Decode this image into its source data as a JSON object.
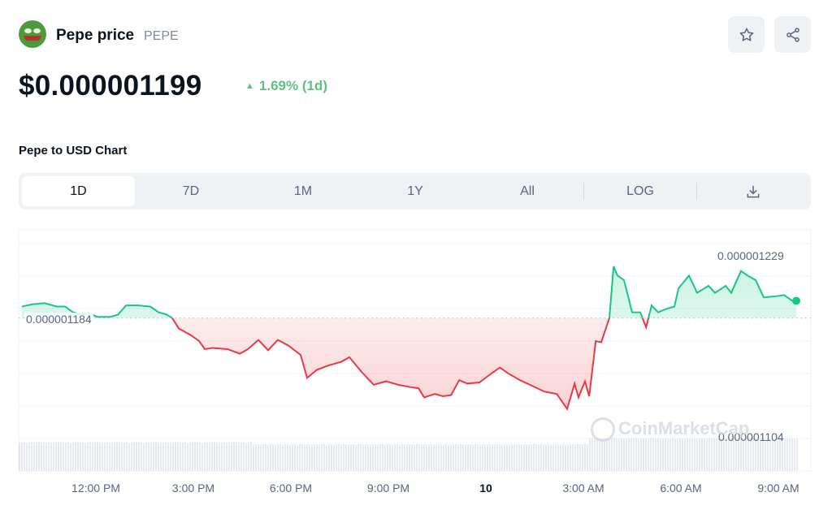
{
  "header": {
    "title": "Pepe price",
    "symbol": "PEPE",
    "price": "$0.000001199",
    "change": "1.69% (1d)",
    "change_direction": "up",
    "logo_icon": "pepe-frog-icon"
  },
  "actions": {
    "star_icon": "star-icon",
    "share_icon": "share-icon"
  },
  "chart_section": {
    "title": "Pepe to USD Chart",
    "tabs": [
      {
        "label": "1D",
        "selected": true
      },
      {
        "label": "7D"
      },
      {
        "label": "1M"
      },
      {
        "label": "1Y"
      },
      {
        "label": "All"
      },
      {
        "label": "LOG"
      }
    ],
    "download_icon": "download-icon"
  },
  "colors": {
    "up": "#16c784",
    "down": "#ea3943",
    "accent_text": "#5ec27f"
  },
  "chart_data": {
    "type": "line",
    "title": "Pepe to USD Chart",
    "value_unit": "1e-9 USD",
    "x_unit": "hours since 12:00 PM",
    "x_tick_labels": [
      "12:00 PM",
      "3:00 PM",
      "6:00 PM",
      "9:00 PM",
      "10",
      "3:00 AM",
      "6:00 AM",
      "9:00 AM"
    ],
    "x_tick_hours": [
      0,
      3,
      6,
      9,
      12,
      15,
      18,
      21
    ],
    "reference_label": "0.000001184",
    "reference_value": 1184,
    "high_label": "0.000001229",
    "high_value": 1229,
    "low_label": "0.000001104",
    "low_value": 1104,
    "watermark": "CoinMarketCap",
    "x": [
      -2.28,
      -1.95,
      -1.58,
      -1.2,
      -0.95,
      -0.7,
      -0.45,
      -0.2,
      0.05,
      0.43,
      0.68,
      0.93,
      1.3,
      1.68,
      1.93,
      2.18,
      2.35,
      2.55,
      2.93,
      3.18,
      3.35,
      3.6,
      4.05,
      4.43,
      4.68,
      5.0,
      5.3,
      5.6,
      5.93,
      6.3,
      6.5,
      6.8,
      7.18,
      7.55,
      7.8,
      8.18,
      8.55,
      8.93,
      9.3,
      9.68,
      9.93,
      10.1,
      10.43,
      10.68,
      10.93,
      11.18,
      11.43,
      11.8,
      12.18,
      12.43,
      12.68,
      13.05,
      13.43,
      13.8,
      14.18,
      14.5,
      14.73,
      14.85,
      15.05,
      15.18,
      15.38,
      15.55,
      15.8,
      15.93,
      16.05,
      16.25,
      16.5,
      16.75,
      16.93,
      17.1,
      17.3,
      17.55,
      17.8,
      17.93,
      18.25,
      18.5,
      18.85,
      19.05,
      19.38,
      19.55,
      19.85,
      20.05,
      20.3,
      20.55,
      20.93,
      21.18,
      21.43,
      21.55
    ],
    "values": [
      1194,
      1196,
      1197,
      1194,
      1194,
      1189,
      1187,
      1188,
      1185,
      1185,
      1187,
      1195,
      1195,
      1194,
      1189,
      1187,
      1184,
      1175,
      1169,
      1164,
      1157,
      1158,
      1157,
      1153,
      1157,
      1165,
      1156,
      1165,
      1160,
      1152,
      1132,
      1139,
      1143,
      1146,
      1150,
      1137,
      1126,
      1129,
      1126,
      1124,
      1123,
      1115,
      1118,
      1116,
      1117,
      1130,
      1127,
      1128,
      1136,
      1141,
      1136,
      1130,
      1125,
      1120,
      1118,
      1105,
      1127,
      1115,
      1129,
      1116,
      1164,
      1163,
      1184,
      1229,
      1221,
      1217,
      1189,
      1189,
      1176,
      1195,
      1189,
      1192,
      1194,
      1210,
      1221,
      1206,
      1212,
      1206,
      1212,
      1206,
      1225,
      1221,
      1217,
      1202,
      1203,
      1204,
      1199,
      1199
    ]
  }
}
